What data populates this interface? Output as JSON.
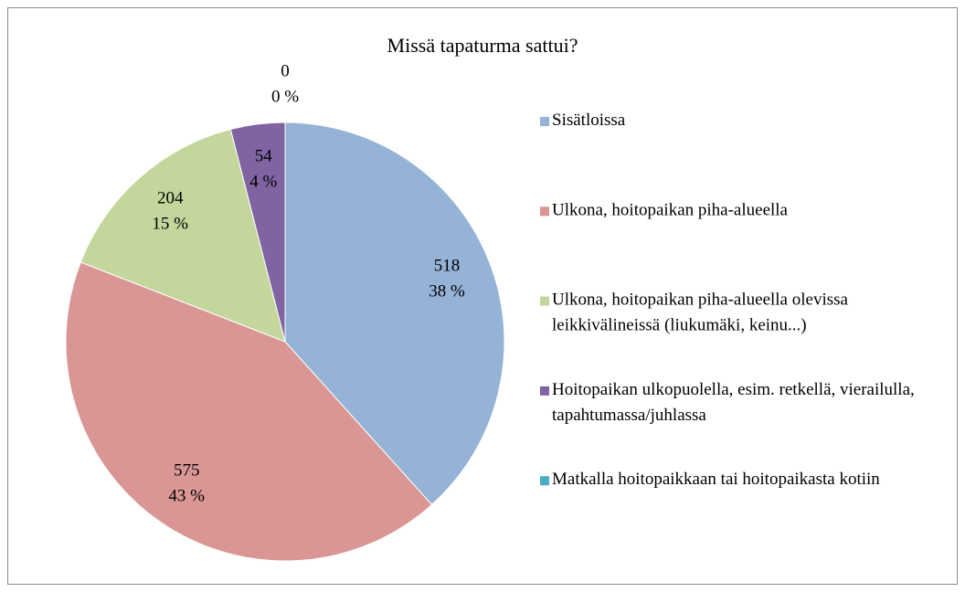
{
  "chart_data": {
    "type": "pie",
    "title": "Missä tapaturma sattui?",
    "categories": [
      "Sisätloissa",
      "Ulkona, hoitopaikan piha-alueella",
      "Ulkona, hoitopaikan piha-alueella olevissa leikkivälineissä (liukumäki, keinu...)",
      "Hoitopaikan ulkopuolella, esim. retkellä, vierailulla, tapahtumassa/juhlassa",
      "Matkalla hoitopaikkaan tai hoitopaikasta kotiin"
    ],
    "values": [
      518,
      575,
      204,
      54,
      0
    ],
    "percents": [
      38,
      43,
      15,
      4,
      0
    ],
    "percent_labels": [
      "38 %",
      "43 %",
      "15 %",
      "4 %",
      "0 %"
    ],
    "colors": [
      "#95b3d7",
      "#d99694",
      "#c3d69b",
      "#8064a2",
      "#4bacc6"
    ],
    "legend": "right"
  }
}
